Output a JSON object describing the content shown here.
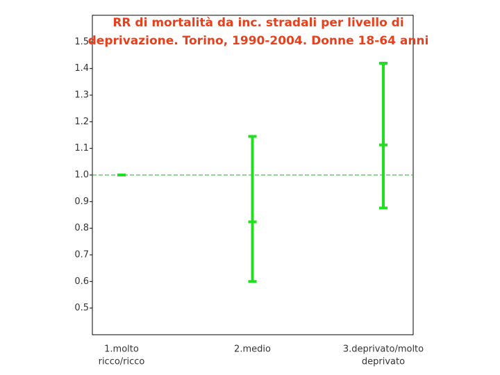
{
  "chart_data": {
    "type": "errorbar",
    "title": [
      "RR di mortalità da inc. stradali per livello di",
      "deprivazione. Torino, 1990-2004. Donne 18-64 anni"
    ],
    "categories": [
      [
        "1.molto",
        "ricco/ricco"
      ],
      [
        "2.medio"
      ],
      [
        "3.deprivato/molto",
        "deprivato"
      ]
    ],
    "values": [
      1.0,
      0.824,
      1.113
    ],
    "lower": [
      1.0,
      0.6,
      0.876
    ],
    "upper": [
      1.0,
      1.145,
      1.42
    ],
    "color": "#22dd22",
    "reference_line": {
      "value": 1.0,
      "color": "#22aa22"
    },
    "ylim": [
      0.4,
      1.6
    ],
    "yticks": [
      0.5,
      0.6,
      0.7,
      0.8,
      0.9,
      {
        "value": 1.0,
        "label": "1.0"
      },
      1.1,
      1.2,
      1.3,
      1.4,
      1.5
    ]
  }
}
